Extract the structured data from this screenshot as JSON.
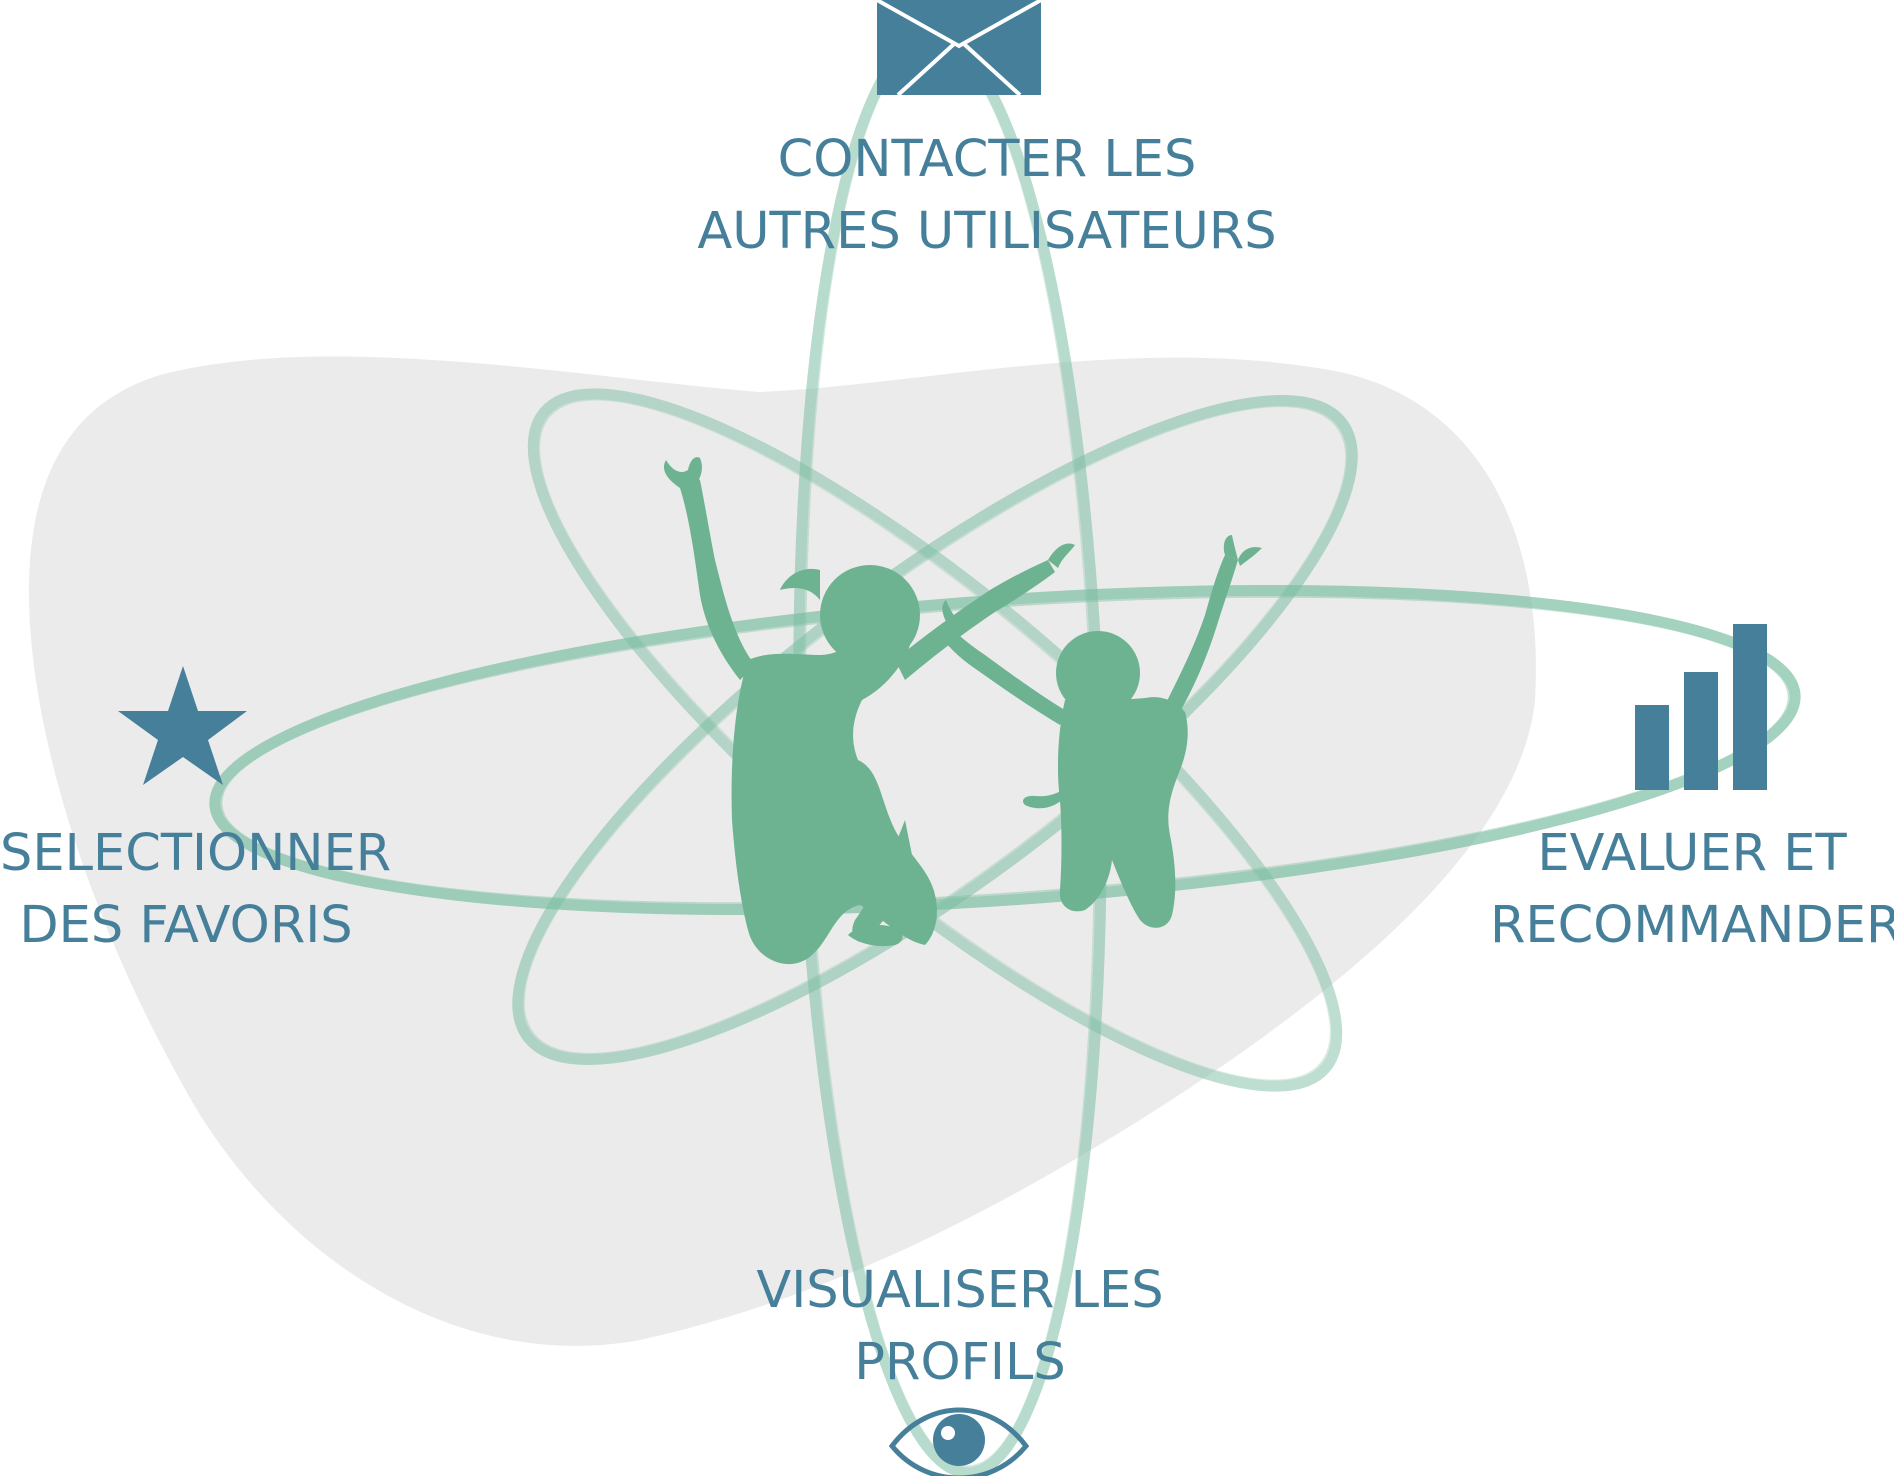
{
  "colors": {
    "accent": "#467f9a",
    "figure": "#6db391",
    "orbit": "#7dbfa3",
    "blob": "#ebebeb"
  },
  "features": [
    {
      "id": "contact",
      "icon": "envelope-icon",
      "line1": "CONTACTER LES",
      "line2": "AUTRES UTILISATEURS"
    },
    {
      "id": "favorites",
      "icon": "star-icon",
      "line1": "SELECTIONNER",
      "line2": "DES FAVORIS"
    },
    {
      "id": "evaluate",
      "icon": "bar-chart-icon",
      "line1": "EVALUER ET",
      "line2": "RECOMMANDER"
    },
    {
      "id": "profiles",
      "icon": "eye-icon",
      "line1": "VISUALISER LES",
      "line2": "PROFILS"
    }
  ],
  "center": {
    "icon": "jumping-people-icon"
  }
}
